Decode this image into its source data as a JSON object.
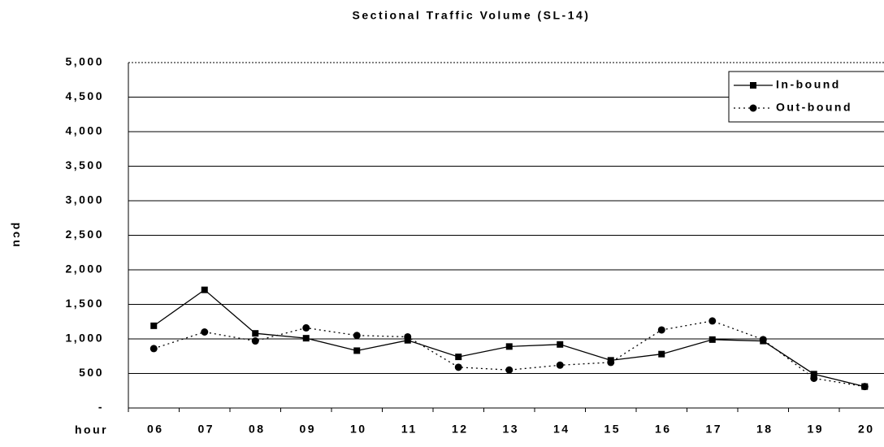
{
  "chart_data": {
    "type": "line",
    "title": "Sectional Traffic Volume (SL-14)",
    "y_label": "pcu",
    "x_label": "hour",
    "categories": [
      "06",
      "07",
      "08",
      "09",
      "10",
      "11",
      "12",
      "13",
      "14",
      "15",
      "16",
      "17",
      "18",
      "19",
      "20"
    ],
    "series": [
      {
        "name": "In-bound",
        "color": "#000000",
        "linestyle": "solid",
        "marker": "square",
        "values": [
          1190,
          1710,
          1080,
          1010,
          830,
          980,
          740,
          890,
          920,
          690,
          780,
          990,
          970,
          490,
          310
        ]
      },
      {
        "name": "Out-bound",
        "color": "#000000",
        "linestyle": "dotted",
        "marker": "circle",
        "values": [
          860,
          1100,
          970,
          1160,
          1050,
          1030,
          590,
          550,
          620,
          660,
          1130,
          1260,
          990,
          430,
          310
        ]
      }
    ],
    "ylim": [
      0,
      5000
    ],
    "yticks": [
      {
        "value": 0,
        "label": "-"
      },
      500,
      {
        "value": 1000,
        "label": "1,000"
      },
      {
        "value": 1500,
        "label": "1,500"
      },
      {
        "value": 2000,
        "label": "2,000"
      },
      {
        "value": 2500,
        "label": "2,500"
      },
      {
        "value": 3000,
        "label": "3,000"
      },
      {
        "value": 3500,
        "label": "3,500"
      },
      {
        "value": 4000,
        "label": "4,000"
      },
      {
        "value": 4500,
        "label": "4,500"
      },
      {
        "value": 5000,
        "label": "5,000"
      }
    ],
    "grid": true,
    "legend": "upper right"
  }
}
